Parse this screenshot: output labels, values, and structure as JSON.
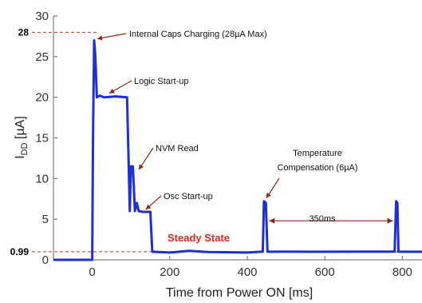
{
  "chart_data": {
    "type": "line",
    "xlabel": "Time from Power ON [ms]",
    "ylabel_main": "I",
    "ylabel_sub": "DD",
    "ylabel_unit": " [µA]",
    "xlim": [
      -100,
      900
    ],
    "ylim": [
      0,
      30
    ],
    "xticks": [
      0,
      200,
      400,
      600,
      800
    ],
    "yticks": [
      0,
      5,
      10,
      15,
      20,
      25,
      30
    ],
    "grid": false,
    "line_color": "#1f2fd6",
    "marker_color": "#c0392b",
    "steady_color": "#d42a1e",
    "series": [
      {
        "x": [
          -100,
          0,
          2,
          5,
          8,
          12,
          20,
          30,
          60,
          90,
          97,
          100,
          105,
          110,
          115,
          120,
          130,
          150,
          155,
          200,
          250,
          300,
          400,
          440,
          443,
          448,
          452,
          460,
          500,
          600,
          700,
          780,
          784,
          787,
          790,
          800,
          900
        ],
        "y": [
          0,
          0,
          15,
          27,
          25,
          20,
          20.2,
          20,
          20.1,
          20,
          6,
          11.5,
          11.5,
          6,
          7,
          6,
          5.9,
          5.9,
          0.99,
          0.9,
          1.1,
          0.95,
          0.9,
          1.0,
          7.2,
          7,
          1.0,
          0.99,
          1.0,
          0.99,
          1.0,
          1.0,
          7.2,
          7.0,
          1.0,
          0.99,
          1.0
        ]
      }
    ],
    "reference_lines": [
      {
        "label": "28",
        "y": 28
      },
      {
        "label": "0.99",
        "y": 0.99
      }
    ],
    "annotations": [
      {
        "text": "Internal Caps Charging (28µA Max)",
        "x": 5,
        "y": 27
      },
      {
        "text": "Logic Start-up",
        "x": 40,
        "y": 20.3
      },
      {
        "text": "NVM Read",
        "x": 112,
        "y": 11.5
      },
      {
        "text": "Osc Start-up",
        "x": 130,
        "y": 6
      },
      {
        "text_lines": [
          "Temperature",
          "Compensation (6µA)"
        ],
        "x": 443,
        "y": 7.4
      },
      {
        "text": "350ms",
        "x_start": 448,
        "x_end": 784,
        "y": 4.8
      },
      {
        "text": "Steady State"
      }
    ]
  }
}
